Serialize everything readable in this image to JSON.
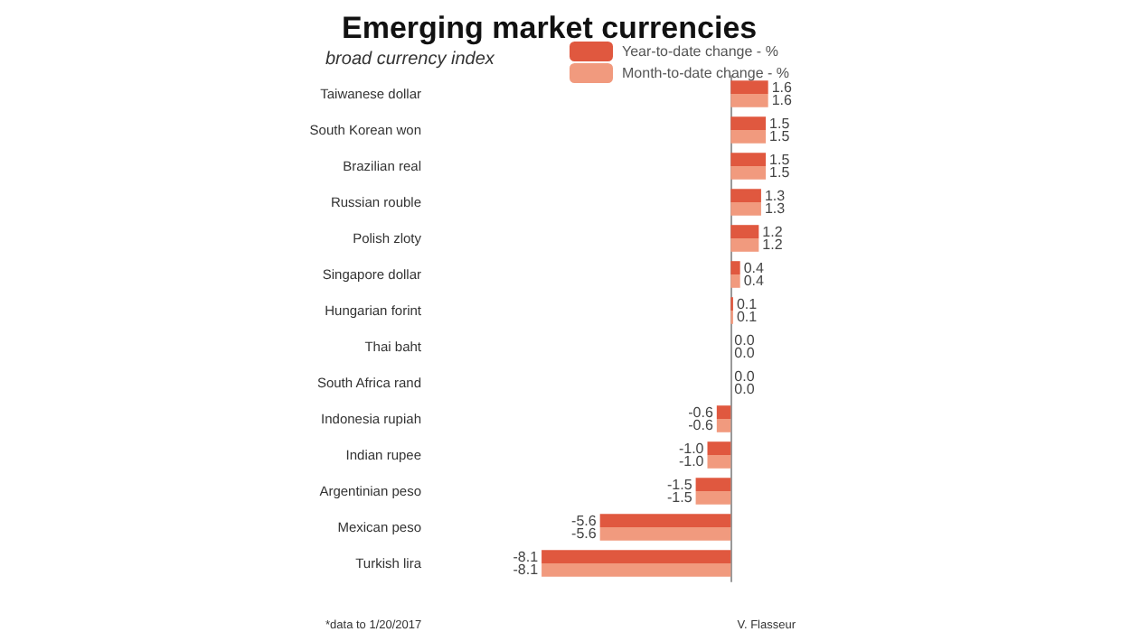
{
  "chart_data": {
    "type": "bar",
    "orientation": "horizontal",
    "title": "Emerging market currencies",
    "subtitle": "broad currency index",
    "categories": [
      "Taiwanese dollar",
      "South Korean won",
      "Brazilian real",
      "Russian rouble",
      "Polish zloty",
      "Singapore dollar",
      "Hungarian forint",
      "Thai baht",
      "South Africa rand",
      "Indonesia rupiah",
      "Indian rupee",
      "Argentinian peso",
      "Mexican peso",
      "Turkish lira"
    ],
    "series": [
      {
        "name": "Year-to-date change - %",
        "color": "#e0583f",
        "values": [
          1.6,
          1.5,
          1.5,
          1.3,
          1.2,
          0.4,
          0.1,
          0.0,
          0.0,
          -0.6,
          -1.0,
          -1.5,
          -5.6,
          -8.1
        ],
        "value_labels": [
          "1.6",
          "1.5",
          "1.5",
          "1.3",
          "1.2",
          "0.4",
          "0.1",
          "0.0",
          "0.0",
          "-0.6",
          "-1.0",
          "-1.5",
          "-5.6",
          "-8.1"
        ]
      },
      {
        "name": "Month-to-date change - %",
        "color": "#f19a7e",
        "values": [
          1.6,
          1.5,
          1.5,
          1.3,
          1.2,
          0.4,
          0.1,
          0.0,
          0.0,
          -0.6,
          -1.0,
          -1.5,
          -5.6,
          -8.1
        ],
        "value_labels": [
          "1.6",
          "1.5",
          "1.5",
          "1.3",
          "1.2",
          "0.4",
          "0.1",
          "0.0",
          "0.0",
          "-0.6",
          "-1.0",
          "-1.5",
          "-5.6",
          "-8.1"
        ]
      }
    ],
    "legend": "top right",
    "grid": false,
    "annotations": [
      "*data to 1/20/2017",
      "V. Flasseur"
    ]
  }
}
